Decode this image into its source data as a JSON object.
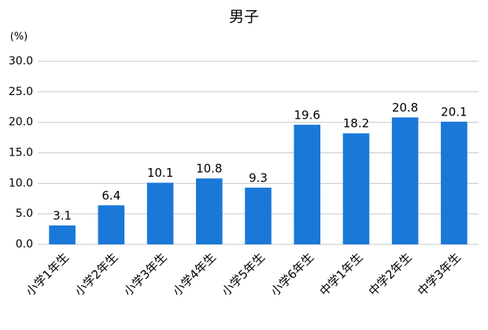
{
  "chart_data": {
    "type": "bar",
    "title": "男子",
    "y_unit": "(%)",
    "categories": [
      "小学1年生",
      "小学2年生",
      "小学3年生",
      "小学4年生",
      "小学5年生",
      "小学6年生",
      "中学1年生",
      "中学2年生",
      "中学3年生"
    ],
    "values": [
      3.1,
      6.4,
      10.1,
      10.8,
      9.3,
      19.6,
      18.2,
      20.8,
      20.1
    ],
    "color": "#1a78d8",
    "ylim": [
      0,
      30
    ],
    "yticks": [
      {
        "value": 0,
        "label": "0.0"
      },
      {
        "value": 5,
        "label": "5.0"
      },
      {
        "value": 10,
        "label": "10.0"
      },
      {
        "value": 15,
        "label": "15.0"
      },
      {
        "value": 20,
        "label": "20.0"
      },
      {
        "value": 25,
        "label": "25.0"
      },
      {
        "value": 30,
        "label": "30.0"
      }
    ],
    "grid": true
  }
}
